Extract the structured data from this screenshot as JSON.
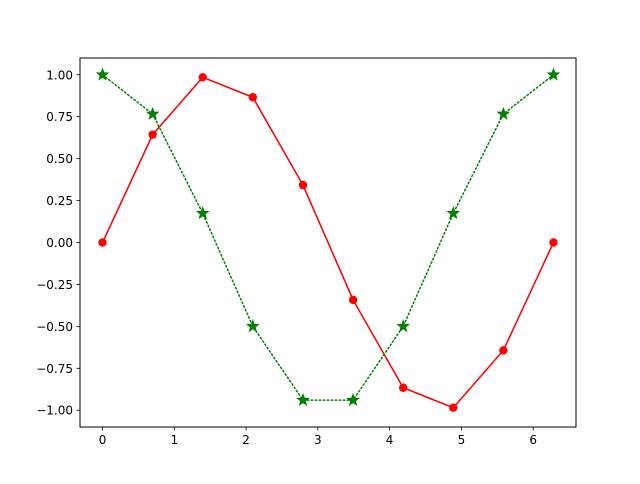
{
  "chart_data": {
    "type": "line",
    "title": "",
    "xlabel": "",
    "ylabel": "",
    "xlim": [
      -0.314,
      6.597
    ],
    "ylim": [
      -1.1,
      1.1
    ],
    "grid": false,
    "xticks": [
      0,
      1,
      2,
      3,
      4,
      5,
      6
    ],
    "xtick_labels": [
      "0",
      "1",
      "2",
      "3",
      "4",
      "5",
      "6"
    ],
    "yticks": [
      -1.0,
      -0.75,
      -0.5,
      -0.25,
      0.0,
      0.25,
      0.5,
      0.75,
      1.0
    ],
    "ytick_labels": [
      "−1.00",
      "−0.75",
      "−0.50",
      "−0.25",
      "0.00",
      "0.25",
      "0.50",
      "0.75",
      "1.00"
    ],
    "series": [
      {
        "x": [
          0,
          0.698,
          1.396,
          2.094,
          2.793,
          3.491,
          4.189,
          4.887,
          5.585,
          6.283
        ],
        "values": [
          0.0,
          0.643,
          0.985,
          0.866,
          0.342,
          -0.342,
          -0.866,
          -0.985,
          -0.643,
          0.0
        ],
        "color": "#ff0000",
        "line_style": "solid",
        "marker": "circle"
      },
      {
        "x": [
          0,
          0.698,
          1.396,
          2.094,
          2.793,
          3.491,
          4.189,
          4.887,
          5.585,
          6.283
        ],
        "values": [
          1.0,
          0.766,
          0.174,
          -0.5,
          -0.94,
          -0.94,
          -0.5,
          0.174,
          0.766,
          1.0
        ],
        "color": "#008000",
        "line_style": "dotted",
        "marker": "star"
      }
    ]
  }
}
